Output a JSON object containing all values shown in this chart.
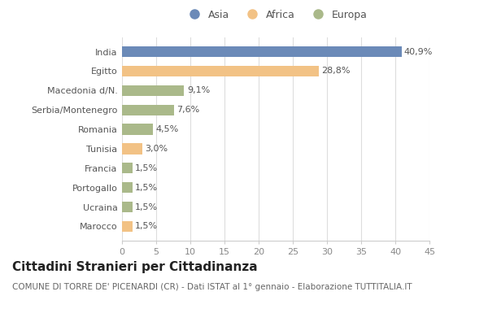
{
  "categories": [
    "India",
    "Egitto",
    "Macedonia d/N.",
    "Serbia/Montenegro",
    "Romania",
    "Tunisia",
    "Francia",
    "Portogallo",
    "Ucraina",
    "Marocco"
  ],
  "values": [
    40.9,
    28.8,
    9.1,
    7.6,
    4.5,
    3.0,
    1.5,
    1.5,
    1.5,
    1.5
  ],
  "labels": [
    "40,9%",
    "28,8%",
    "9,1%",
    "7,6%",
    "4,5%",
    "3,0%",
    "1,5%",
    "1,5%",
    "1,5%",
    "1,5%"
  ],
  "colors": [
    "#6b8ab8",
    "#f2c285",
    "#aab98a",
    "#aab98a",
    "#aab98a",
    "#f2c285",
    "#aab98a",
    "#aab98a",
    "#aab98a",
    "#f2c285"
  ],
  "legend_labels": [
    "Asia",
    "Africa",
    "Europa"
  ],
  "legend_colors": [
    "#6b8ab8",
    "#f2c285",
    "#aab98a"
  ],
  "xlim": [
    0,
    45
  ],
  "xticks": [
    0,
    5,
    10,
    15,
    20,
    25,
    30,
    35,
    40,
    45
  ],
  "title": "Cittadini Stranieri per Cittadinanza",
  "subtitle": "COMUNE DI TORRE DE' PICENARDI (CR) - Dati ISTAT al 1° gennaio - Elaborazione TUTTITALIA.IT",
  "bg_color": "#ffffff",
  "bar_height": 0.55,
  "title_fontsize": 11,
  "subtitle_fontsize": 7.5,
  "label_fontsize": 8,
  "tick_fontsize": 8,
  "legend_fontsize": 9
}
